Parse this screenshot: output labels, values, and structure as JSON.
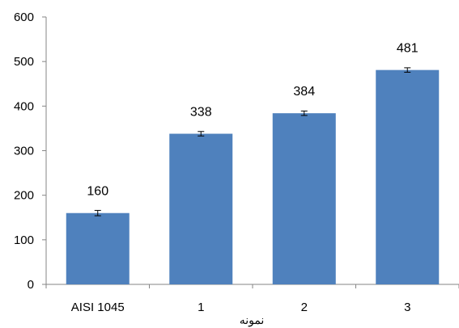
{
  "chart_data": {
    "type": "bar",
    "categories": [
      "AISI 1045",
      "1",
      "2",
      "3"
    ],
    "values": [
      160,
      338,
      384,
      481
    ],
    "error_bars": [
      6,
      5,
      5,
      5
    ],
    "data_labels": [
      "160",
      "338",
      "384",
      "481"
    ],
    "title": "",
    "xlabel": "نمونه",
    "ylabel": "",
    "ylim": [
      0,
      600
    ],
    "yticks": [
      0,
      100,
      200,
      300,
      400,
      500,
      600
    ],
    "grid": false,
    "legend": "none",
    "colors": {
      "bar": "#4f81bd",
      "axis": "#868686",
      "text": "#000000"
    }
  }
}
